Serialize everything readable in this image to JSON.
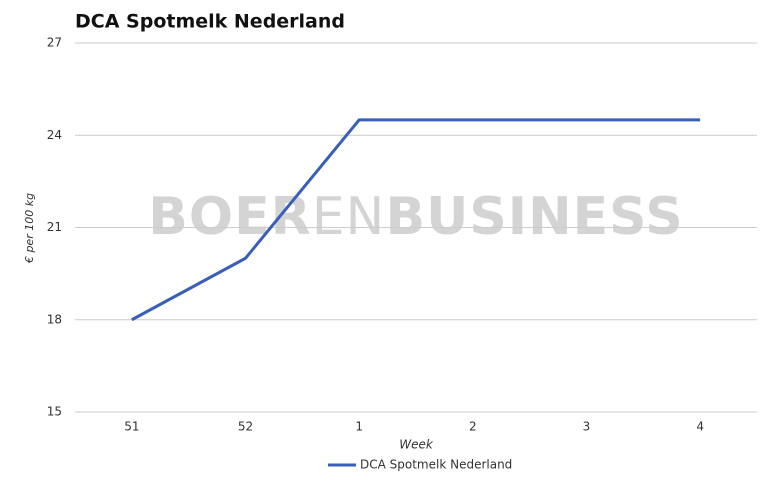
{
  "chart_data": {
    "type": "line",
    "title": "DCA Spotmelk Nederland",
    "x_label": "Week",
    "y_label": "€ per 100 kg",
    "watermark": [
      "BOER",
      "EN",
      "BUSINESS"
    ],
    "categories": [
      "51",
      "52",
      "1",
      "2",
      "3",
      "4"
    ],
    "series": [
      {
        "name": "DCA Spotmelk Nederland",
        "color": "#3a5fb8",
        "values": [
          18,
          20,
          24.5,
          24.5,
          24.5,
          24.5
        ]
      }
    ],
    "ylim": [
      15,
      27
    ],
    "yticks": [
      15,
      18,
      21,
      24,
      27
    ],
    "grid": true,
    "legend": "bottom"
  }
}
